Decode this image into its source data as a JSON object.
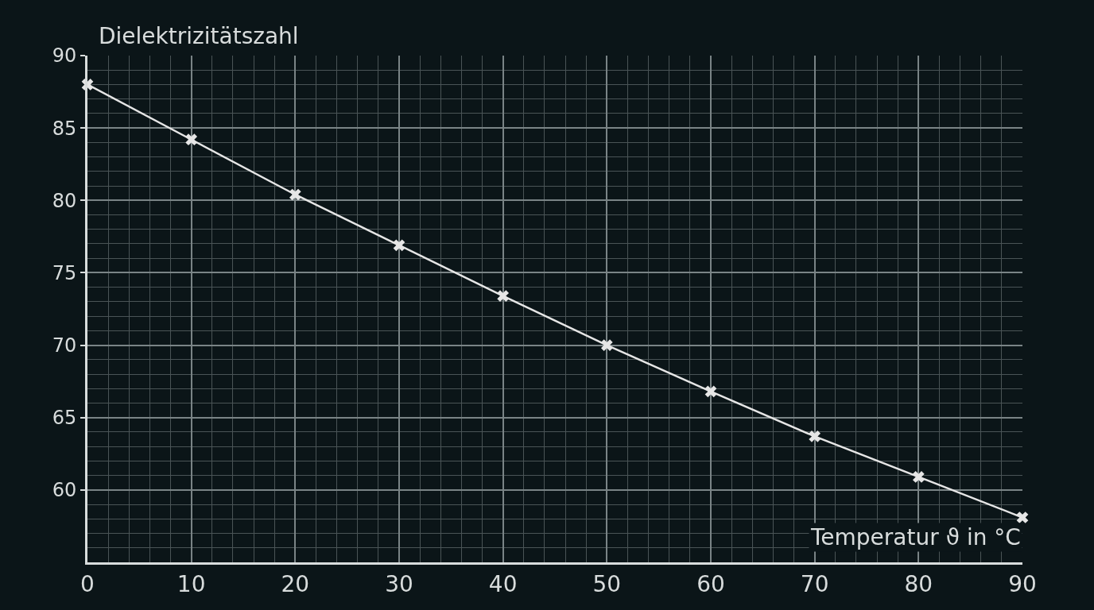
{
  "chart_data": {
    "type": "line",
    "xlabel": "Temperatur ϑ in °C",
    "ylabel": "Dielektrizitätszahl",
    "x": [
      0,
      10,
      20,
      30,
      40,
      50,
      60,
      70,
      80,
      90
    ],
    "series": [
      {
        "color": "#e6e6e6",
        "values": [
          88.0,
          84.2,
          80.4,
          76.9,
          73.4,
          70.0,
          66.8,
          63.7,
          60.9,
          58.1
        ]
      }
    ],
    "xlim": [
      0,
      90
    ],
    "ylim": [
      55,
      90
    ],
    "xticks": [
      0,
      10,
      20,
      30,
      40,
      50,
      60,
      70,
      80,
      90
    ],
    "yticks": [
      60,
      65,
      70,
      75,
      80,
      85,
      90
    ],
    "grid": true,
    "marker": "cross",
    "line_style": "solid"
  }
}
